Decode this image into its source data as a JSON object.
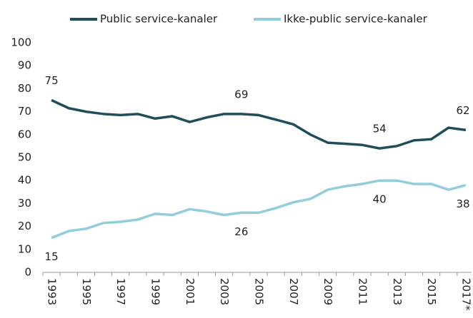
{
  "chart_data": {
    "type": "line",
    "categories": [
      "1993",
      null,
      "1995",
      null,
      "1997",
      null,
      "1999",
      null,
      "2001",
      null,
      "2003",
      null,
      "2005",
      null,
      "2007",
      null,
      "2009",
      null,
      "2011",
      null,
      "2013",
      null,
      "2015",
      null,
      "2017*"
    ],
    "series": [
      {
        "name": "Public service-kanaler",
        "color": "#1f4e5a",
        "values": [
          75,
          71.5,
          70,
          69,
          68.5,
          69,
          67,
          68,
          65.5,
          67.5,
          69,
          69,
          68.5,
          66.5,
          64.5,
          60,
          56.5,
          56,
          55.5,
          54,
          55,
          57.5,
          58,
          63,
          62
        ],
        "value_labels": [
          "75",
          null,
          null,
          null,
          null,
          null,
          null,
          null,
          null,
          null,
          null,
          "69",
          null,
          null,
          null,
          null,
          null,
          null,
          null,
          "54",
          null,
          null,
          null,
          null,
          "62"
        ]
      },
      {
        "name": "Ikke-public service-kanaler",
        "color": "#92cddc",
        "values": [
          15,
          18,
          19,
          21.5,
          22,
          23,
          25.5,
          25,
          27.5,
          26.5,
          25,
          26,
          26,
          28,
          30.5,
          32,
          36,
          37.5,
          38.5,
          40,
          40,
          38.5,
          38.5,
          36,
          38
        ],
        "value_labels": [
          "15",
          null,
          null,
          null,
          null,
          null,
          null,
          null,
          null,
          null,
          null,
          "26",
          null,
          null,
          null,
          null,
          null,
          null,
          null,
          "40",
          null,
          null,
          null,
          null,
          "38"
        ]
      }
    ],
    "ylim": [
      0,
      100
    ],
    "yticks": [
      0,
      10,
      20,
      30,
      40,
      50,
      60,
      70,
      80,
      90,
      100
    ],
    "legend": "top"
  }
}
